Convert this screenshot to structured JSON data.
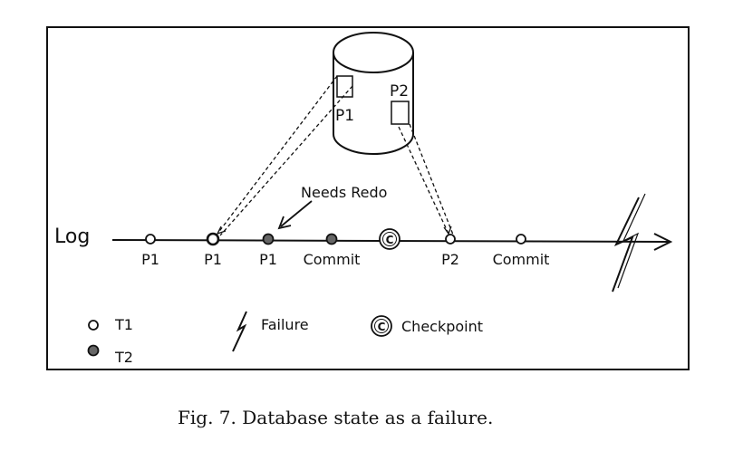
{
  "diagram": {
    "log_label": "Log",
    "disk": {
      "pages": [
        {
          "label": "P1"
        },
        {
          "label": "P2"
        }
      ]
    },
    "annotation": "Needs Redo",
    "timeline": [
      {
        "label": "P1",
        "kind": "T1"
      },
      {
        "label": "P1",
        "kind": "T1"
      },
      {
        "label": "P1",
        "kind": "T2"
      },
      {
        "label": "Commit",
        "kind": "T2"
      },
      {
        "label": "",
        "kind": "checkpoint"
      },
      {
        "label": "P2",
        "kind": "T1"
      },
      {
        "label": "Commit",
        "kind": "T1"
      }
    ],
    "legend": {
      "t1": "T1",
      "t2": "T2",
      "failure": "Failure",
      "checkpoint": "Checkpoint",
      "checkpoint_glyph": "C"
    }
  },
  "caption": "Fig. 7.    Database state as a failure."
}
